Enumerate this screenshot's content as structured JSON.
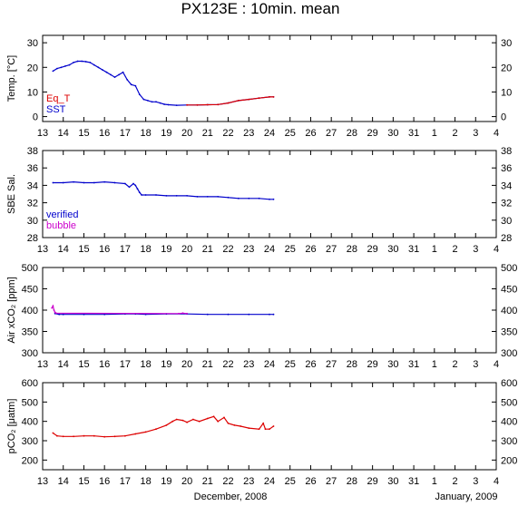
{
  "title": "PX123E : 10min. mean",
  "footer": {
    "month_left": "December, 2008",
    "month_right": "January, 2009"
  },
  "colors": {
    "sst": "#0000cc",
    "eq_t": "#dd0000",
    "verified": "#0000cc",
    "bubble": "#cc00cc",
    "pco2": "#dd0000",
    "axis": "#000000"
  },
  "x_tick_labels": [
    "13",
    "14",
    "15",
    "16",
    "17",
    "18",
    "19",
    "20",
    "21",
    "22",
    "23",
    "24",
    "25",
    "26",
    "27",
    "28",
    "29",
    "30",
    "31",
    "1",
    "2",
    "3",
    "4"
  ],
  "chart_data": [
    {
      "type": "line",
      "ylabel": "Temp. [°C]",
      "ylim": [
        -2,
        33
      ],
      "yticks": [
        0,
        10,
        20,
        30
      ],
      "xlim": [
        13,
        35
      ],
      "legend": [
        "Eq_T",
        "SST"
      ],
      "series": [
        {
          "name": "SST",
          "x": [
            13.5,
            13.7,
            13.9,
            14.1,
            14.3,
            14.5,
            14.7,
            14.9,
            15.1,
            15.3,
            15.5,
            15.7,
            15.9,
            16.1,
            16.3,
            16.5,
            16.7,
            16.9,
            17.1,
            17.3,
            17.5,
            17.7,
            17.9,
            18.1,
            18.3,
            18.5,
            18.7,
            18.9,
            19.1,
            19.5,
            20.0,
            20.5,
            21.0,
            21.5,
            22.0,
            22.5,
            23.0,
            23.5,
            24.0,
            24.2
          ],
          "y": [
            18.5,
            19.5,
            20,
            20.5,
            21,
            22,
            22.5,
            22.5,
            22.3,
            22,
            21,
            20,
            19,
            18,
            17,
            16,
            17,
            18,
            15,
            13,
            12.5,
            9,
            7,
            6.5,
            6,
            6,
            5.5,
            5,
            4.8,
            4.6,
            4.7,
            4.7,
            4.8,
            4.9,
            5.5,
            6.5,
            7,
            7.5,
            8,
            8
          ]
        },
        {
          "name": "Eq_T",
          "x": [
            20.0,
            20.5,
            21.0,
            21.5,
            22.0,
            22.5,
            23.0,
            23.5,
            24.0,
            24.2
          ],
          "y": [
            4.7,
            4.7,
            4.8,
            4.9,
            5.5,
            6.5,
            7,
            7.5,
            8,
            8
          ]
        }
      ]
    },
    {
      "type": "line",
      "ylabel": "SBE Sal.",
      "ylim": [
        28,
        38
      ],
      "yticks": [
        28,
        30,
        32,
        34,
        36,
        38
      ],
      "xlim": [
        13,
        35
      ],
      "legend": [
        "verified",
        "bubble"
      ],
      "series": [
        {
          "name": "verified",
          "x": [
            13.5,
            14.0,
            14.5,
            15.0,
            15.5,
            16.0,
            16.5,
            17.0,
            17.2,
            17.4,
            17.5,
            17.6,
            17.7,
            17.8,
            18.0,
            18.5,
            19.0,
            19.5,
            20.0,
            20.5,
            21.0,
            21.5,
            22.0,
            22.5,
            23.0,
            23.5,
            24.0,
            24.2
          ],
          "y": [
            34.3,
            34.3,
            34.4,
            34.3,
            34.3,
            34.4,
            34.3,
            34.2,
            33.8,
            34.2,
            34.0,
            33.6,
            33.2,
            32.9,
            32.9,
            32.9,
            32.8,
            32.8,
            32.8,
            32.7,
            32.7,
            32.7,
            32.6,
            32.5,
            32.5,
            32.5,
            32.4,
            32.4
          ]
        }
      ]
    },
    {
      "type": "line",
      "ylabel": "Air xCO₂ [ppm]",
      "ylim": [
        300,
        500
      ],
      "yticks": [
        300,
        350,
        400,
        450,
        500
      ],
      "xlim": [
        13,
        35
      ],
      "series": [
        {
          "name": "verified",
          "x": [
            13.6,
            13.8,
            14.0,
            15.0,
            16.0,
            17.0,
            17.5,
            18.0,
            19.0,
            20.0,
            21.0,
            22.0,
            23.0,
            24.0,
            24.2
          ],
          "y": [
            392,
            390,
            390,
            390,
            390,
            391,
            391,
            390,
            391,
            391,
            390,
            390,
            390,
            390,
            390
          ]
        },
        {
          "name": "bubble",
          "x": [
            13.45,
            13.5,
            13.55,
            13.6,
            13.65,
            19.6,
            19.8,
            20.0
          ],
          "y": [
            405,
            410,
            400,
            395,
            393,
            392,
            393,
            392
          ]
        }
      ]
    },
    {
      "type": "line",
      "ylabel": "pCO₂ [μatm]",
      "ylim": [
        150,
        600
      ],
      "yticks": [
        200,
        300,
        400,
        500,
        600
      ],
      "xlim": [
        13,
        35
      ],
      "series": [
        {
          "name": "pCO2",
          "x": [
            13.5,
            13.7,
            14.0,
            14.5,
            15.0,
            15.5,
            16.0,
            16.5,
            17.0,
            17.5,
            18.0,
            18.5,
            19.0,
            19.3,
            19.5,
            19.8,
            20.0,
            20.3,
            20.6,
            21.0,
            21.3,
            21.5,
            21.8,
            22.0,
            22.3,
            22.6,
            23.0,
            23.5,
            23.7,
            23.8,
            24.0,
            24.2
          ],
          "y": [
            340,
            325,
            322,
            322,
            325,
            325,
            320,
            322,
            325,
            335,
            345,
            360,
            380,
            400,
            410,
            405,
            395,
            410,
            400,
            415,
            425,
            400,
            420,
            390,
            380,
            375,
            365,
            360,
            390,
            360,
            360,
            375
          ]
        }
      ]
    }
  ]
}
